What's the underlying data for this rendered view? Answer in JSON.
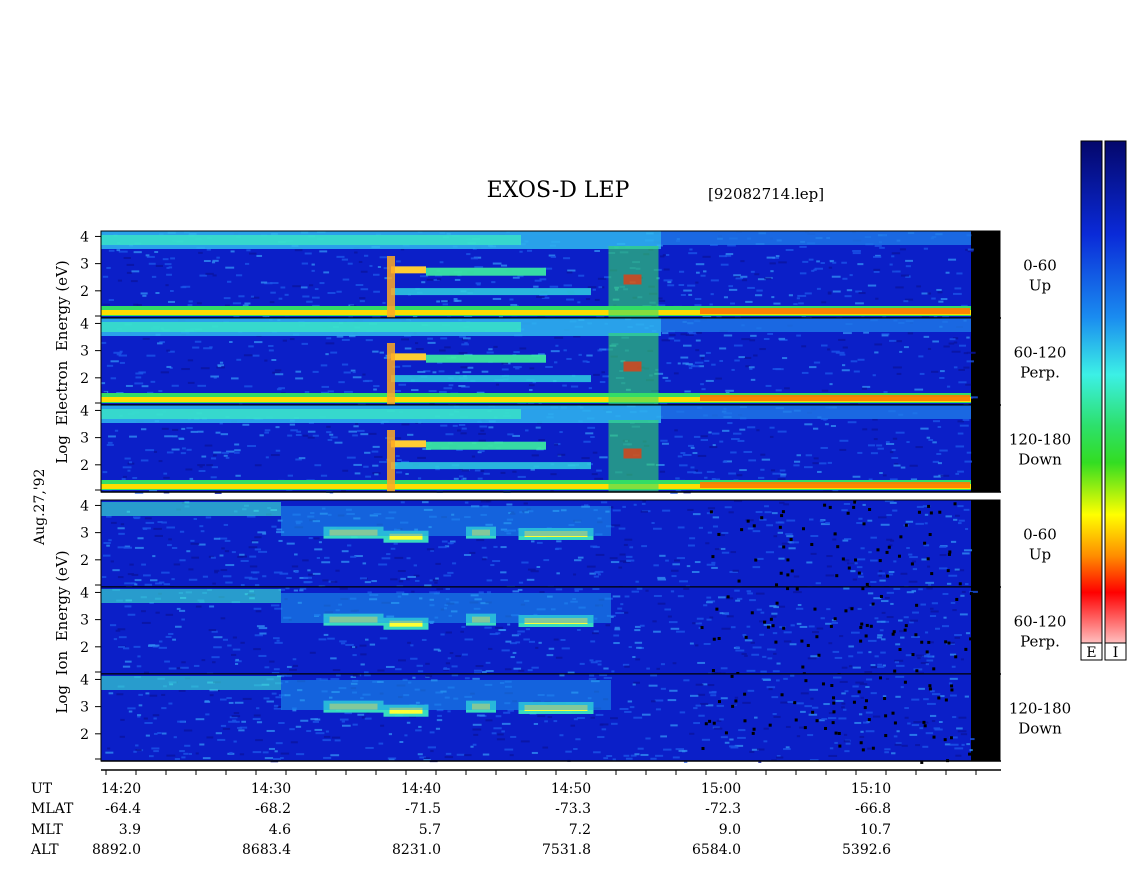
{
  "header": {
    "title": "EXOS-D LEP",
    "file": "[92082714.lep]"
  },
  "side_labels": {
    "date": "Aug.27,'92",
    "electron": "Log  Electron  Energy (eV)",
    "ion": "Log  Ion  Energy (eV)"
  },
  "colorbar": {
    "electron_label": "E",
    "ion_label": "I",
    "colors_top_to_bottom": [
      "#04076b",
      "#0a2ad8",
      "#1a8cf0",
      "#3cf0e6",
      "#2de06a",
      "#33dd22",
      "#ffff00",
      "#ff8c00",
      "#ff0000",
      "#ffffff"
    ]
  },
  "chart_data": {
    "type": "heatmap",
    "title": "EXOS-D LEP",
    "panels": [
      {
        "species": "Electron",
        "pitch_angle": "0-60",
        "direction": "Up",
        "y_ticks": [
          "4",
          "3",
          "2"
        ]
      },
      {
        "species": "Electron",
        "pitch_angle": "60-120",
        "direction": "Perp.",
        "y_ticks": [
          "4",
          "3",
          "2"
        ]
      },
      {
        "species": "Electron",
        "pitch_angle": "120-180",
        "direction": "Down",
        "y_ticks": [
          "4",
          "3",
          "2"
        ]
      },
      {
        "species": "Ion",
        "pitch_angle": "0-60",
        "direction": "Up",
        "y_ticks": [
          "4",
          "3",
          "2"
        ]
      },
      {
        "species": "Ion",
        "pitch_angle": "60-120",
        "direction": "Perp.",
        "y_ticks": [
          "4",
          "3",
          "2"
        ]
      },
      {
        "species": "Ion",
        "pitch_angle": "120-180",
        "direction": "Down",
        "y_ticks": [
          "4",
          "3",
          "2"
        ]
      }
    ],
    "ylabel": "Log Energy (eV)",
    "ylim": [
      1,
      4.2
    ],
    "x_ticks": {
      "UT": [
        "14:20",
        "14:30",
        "14:40",
        "14:50",
        "15:00",
        "15:10"
      ],
      "MLAT": [
        "-64.4",
        "-68.2",
        "-71.5",
        "-73.3",
        "-72.3",
        "-66.8"
      ],
      "MLT": [
        "3.9",
        "4.6",
        "5.7",
        "7.2",
        "9.0",
        "10.7"
      ],
      "ALT": [
        "8892.0",
        "8683.4",
        "8231.0",
        "7531.8",
        "6584.0",
        "5392.6"
      ]
    },
    "x_row_labels": [
      "UT",
      "MLAT",
      "MLT",
      "ALT"
    ],
    "date": "Aug.27,'92"
  }
}
